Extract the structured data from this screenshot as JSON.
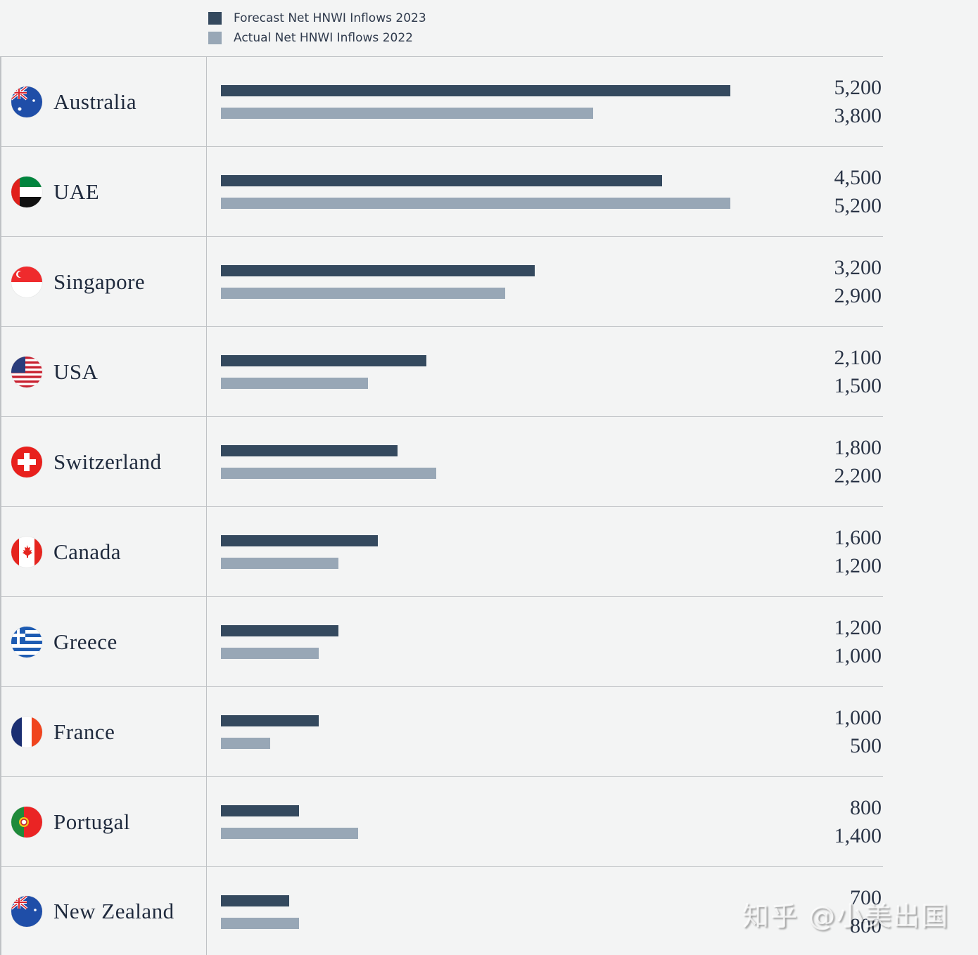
{
  "legend": {
    "forecast_label": "Forecast Net HNWI Inflows 2023",
    "actual_label": "Actual Net HNWI Inflows 2022",
    "forecast_color": "#34495e",
    "actual_color": "#98a7b6"
  },
  "rows": [
    {
      "country": "Australia",
      "flag": "australia-flag-icon",
      "forecast": "5,200",
      "actual": "3,800"
    },
    {
      "country": "UAE",
      "flag": "uae-flag-icon",
      "forecast": "4,500",
      "actual": "5,200"
    },
    {
      "country": "Singapore",
      "flag": "singapore-flag-icon",
      "forecast": "3,200",
      "actual": "2,900"
    },
    {
      "country": "USA",
      "flag": "usa-flag-icon",
      "forecast": "2,100",
      "actual": "1,500"
    },
    {
      "country": "Switzerland",
      "flag": "switzerland-flag-icon",
      "forecast": "1,800",
      "actual": "2,200"
    },
    {
      "country": "Canada",
      "flag": "canada-flag-icon",
      "forecast": "1,600",
      "actual": "1,200"
    },
    {
      "country": "Greece",
      "flag": "greece-flag-icon",
      "forecast": "1,200",
      "actual": "1,000"
    },
    {
      "country": "France",
      "flag": "france-flag-icon",
      "forecast": "1,000",
      "actual": "500"
    },
    {
      "country": "Portugal",
      "flag": "portugal-flag-icon",
      "forecast": "800",
      "actual": "1,400"
    },
    {
      "country": "New Zealand",
      "flag": "new-zealand-flag-icon",
      "forecast": "700",
      "actual": "800"
    }
  ],
  "watermark": "知乎 @小美出国",
  "chart_data": {
    "type": "bar",
    "orientation": "horizontal",
    "title": "",
    "categories": [
      "Australia",
      "UAE",
      "Singapore",
      "USA",
      "Switzerland",
      "Canada",
      "Greece",
      "France",
      "Portugal",
      "New Zealand"
    ],
    "series": [
      {
        "name": "Forecast Net HNWI Inflows 2023",
        "color": "#34495e",
        "values": [
          5200,
          4500,
          3200,
          2100,
          1800,
          1600,
          1200,
          1000,
          800,
          700
        ]
      },
      {
        "name": "Actual Net HNWI Inflows 2022",
        "color": "#98a7b6",
        "values": [
          3800,
          5200,
          2900,
          1500,
          2200,
          1200,
          1000,
          500,
          1400,
          800
        ]
      }
    ],
    "xlabel": "",
    "ylabel": "",
    "xlim": [
      0,
      5200
    ],
    "grid": false,
    "legend_position": "top",
    "data_labels": true
  }
}
